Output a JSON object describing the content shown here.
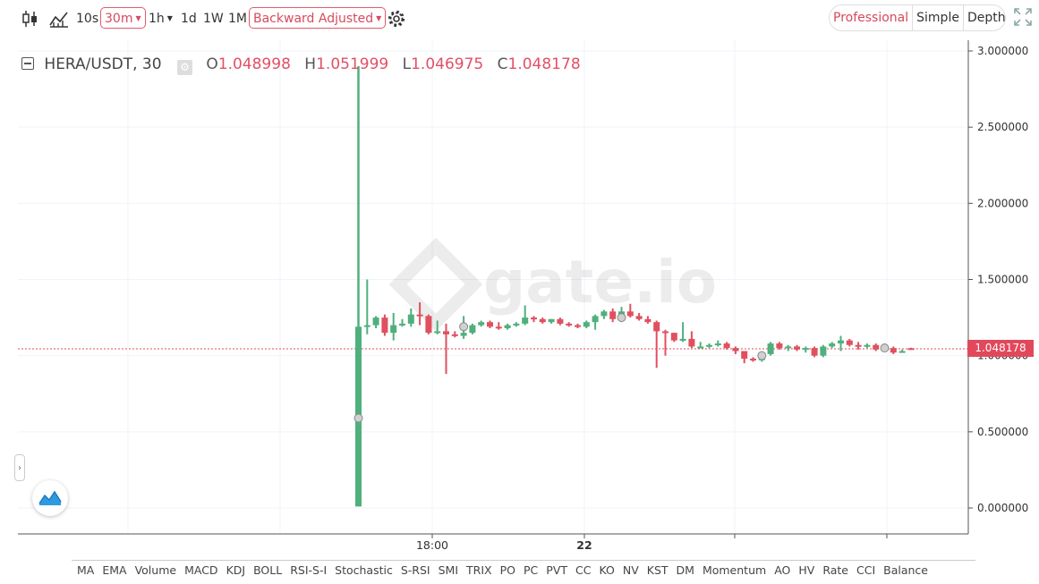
{
  "toolbar": {
    "intervals": [
      "10s",
      "30m",
      "1h",
      "1d",
      "1W",
      "1M"
    ],
    "active_interval": "30m",
    "adjust_label": "Backward Adjusted",
    "views": [
      "Professional",
      "Simple",
      "Depth"
    ],
    "active_view": "Professional"
  },
  "legend": {
    "symbol": "HERA/USDT, 30",
    "o_label": "O",
    "o_value": "1.048998",
    "h_label": "H",
    "h_value": "1.051999",
    "l_label": "L",
    "l_value": "1.046975",
    "c_label": "C",
    "c_value": "1.048178"
  },
  "watermark": "gate.io",
  "last_price_label": "1.048178",
  "side_handle": "›",
  "indicators": [
    "MA",
    "EMA",
    "Volume",
    "MACD",
    "KDJ",
    "BOLL",
    "RSI-S-I",
    "Stochastic",
    "S-RSI",
    "SMI",
    "TRIX",
    "PO",
    "PC",
    "PVT",
    "CC",
    "KO",
    "NV",
    "KST",
    "DM",
    "Momentum",
    "AO",
    "HV",
    "Rate",
    "CCI",
    "Balance"
  ],
  "colors": {
    "up": "#4fb07d",
    "down": "#e0505f",
    "accent": "#d64a5c",
    "grid": "#f0f3fa"
  },
  "icons": [
    "candlestick-icon",
    "indicator-chart-icon",
    "settings-gear-icon",
    "fullscreen-icon",
    "tradingview-logo-icon"
  ],
  "chart_data": {
    "type": "candlestick",
    "title": "HERA/USDT, 30",
    "ylim": [
      0.0,
      3.0
    ],
    "y_ticks": [
      "0.000000",
      "0.500000",
      "1.000000",
      "1.500000",
      "2.000000",
      "2.500000",
      "3.000000"
    ],
    "x_ticks": [
      "18:00",
      "22"
    ],
    "last_price": 1.048178,
    "candles": [
      {
        "o": 0.01,
        "h": 2.9,
        "l": 0.01,
        "c": 1.19
      },
      {
        "o": 1.19,
        "h": 1.5,
        "l": 1.14,
        "c": 1.2
      },
      {
        "o": 1.2,
        "h": 1.26,
        "l": 1.18,
        "c": 1.25
      },
      {
        "o": 1.25,
        "h": 1.27,
        "l": 1.13,
        "c": 1.15
      },
      {
        "o": 1.15,
        "h": 1.28,
        "l": 1.1,
        "c": 1.2
      },
      {
        "o": 1.2,
        "h": 1.24,
        "l": 1.19,
        "c": 1.21
      },
      {
        "o": 1.21,
        "h": 1.31,
        "l": 1.19,
        "c": 1.27
      },
      {
        "o": 1.27,
        "h": 1.35,
        "l": 1.2,
        "c": 1.26
      },
      {
        "o": 1.26,
        "h": 1.27,
        "l": 1.14,
        "c": 1.15
      },
      {
        "o": 1.15,
        "h": 1.23,
        "l": 1.14,
        "c": 1.16
      },
      {
        "o": 1.16,
        "h": 1.21,
        "l": 0.88,
        "c": 1.14
      },
      {
        "o": 1.14,
        "h": 1.16,
        "l": 1.12,
        "c": 1.13
      },
      {
        "o": 1.13,
        "h": 1.26,
        "l": 1.11,
        "c": 1.15
      },
      {
        "o": 1.15,
        "h": 1.21,
        "l": 1.14,
        "c": 1.2
      },
      {
        "o": 1.2,
        "h": 1.23,
        "l": 1.19,
        "c": 1.22
      },
      {
        "o": 1.22,
        "h": 1.23,
        "l": 1.18,
        "c": 1.19
      },
      {
        "o": 1.19,
        "h": 1.22,
        "l": 1.17,
        "c": 1.18
      },
      {
        "o": 1.18,
        "h": 1.21,
        "l": 1.17,
        "c": 1.2
      },
      {
        "o": 1.2,
        "h": 1.22,
        "l": 1.19,
        "c": 1.21
      },
      {
        "o": 1.21,
        "h": 1.33,
        "l": 1.2,
        "c": 1.25
      },
      {
        "o": 1.25,
        "h": 1.26,
        "l": 1.22,
        "c": 1.24
      },
      {
        "o": 1.24,
        "h": 1.25,
        "l": 1.21,
        "c": 1.22
      },
      {
        "o": 1.22,
        "h": 1.24,
        "l": 1.21,
        "c": 1.24
      },
      {
        "o": 1.24,
        "h": 1.25,
        "l": 1.2,
        "c": 1.21
      },
      {
        "o": 1.21,
        "h": 1.22,
        "l": 1.19,
        "c": 1.2
      },
      {
        "o": 1.2,
        "h": 1.21,
        "l": 1.18,
        "c": 1.19
      },
      {
        "o": 1.19,
        "h": 1.23,
        "l": 1.18,
        "c": 1.22
      },
      {
        "o": 1.22,
        "h": 1.27,
        "l": 1.17,
        "c": 1.26
      },
      {
        "o": 1.26,
        "h": 1.3,
        "l": 1.24,
        "c": 1.29
      },
      {
        "o": 1.29,
        "h": 1.31,
        "l": 1.22,
        "c": 1.24
      },
      {
        "o": 1.24,
        "h": 1.32,
        "l": 1.22,
        "c": 1.29
      },
      {
        "o": 1.29,
        "h": 1.34,
        "l": 1.25,
        "c": 1.26
      },
      {
        "o": 1.26,
        "h": 1.28,
        "l": 1.23,
        "c": 1.24
      },
      {
        "o": 1.24,
        "h": 1.26,
        "l": 1.21,
        "c": 1.22
      },
      {
        "o": 1.22,
        "h": 1.23,
        "l": 0.92,
        "c": 1.16
      },
      {
        "o": 1.16,
        "h": 1.17,
        "l": 1.0,
        "c": 1.15
      },
      {
        "o": 1.15,
        "h": 1.15,
        "l": 1.09,
        "c": 1.1
      },
      {
        "o": 1.1,
        "h": 1.22,
        "l": 1.09,
        "c": 1.11
      },
      {
        "o": 1.11,
        "h": 1.16,
        "l": 1.05,
        "c": 1.06
      },
      {
        "o": 1.06,
        "h": 1.09,
        "l": 1.05,
        "c": 1.06
      },
      {
        "o": 1.06,
        "h": 1.08,
        "l": 1.05,
        "c": 1.07
      },
      {
        "o": 1.07,
        "h": 1.1,
        "l": 1.06,
        "c": 1.08
      },
      {
        "o": 1.08,
        "h": 1.09,
        "l": 1.04,
        "c": 1.05
      },
      {
        "o": 1.05,
        "h": 1.06,
        "l": 1.01,
        "c": 1.03
      },
      {
        "o": 1.03,
        "h": 1.03,
        "l": 0.95,
        "c": 0.98
      },
      {
        "o": 0.98,
        "h": 0.99,
        "l": 0.96,
        "c": 0.97
      },
      {
        "o": 0.97,
        "h": 1.02,
        "l": 0.96,
        "c": 1.01
      },
      {
        "o": 1.01,
        "h": 1.09,
        "l": 1.0,
        "c": 1.08
      },
      {
        "o": 1.08,
        "h": 1.09,
        "l": 1.04,
        "c": 1.05
      },
      {
        "o": 1.05,
        "h": 1.07,
        "l": 1.03,
        "c": 1.06
      },
      {
        "o": 1.06,
        "h": 1.07,
        "l": 1.03,
        "c": 1.04
      },
      {
        "o": 1.04,
        "h": 1.06,
        "l": 1.02,
        "c": 1.05
      },
      {
        "o": 1.05,
        "h": 1.06,
        "l": 0.99,
        "c": 1.0
      },
      {
        "o": 1.0,
        "h": 1.07,
        "l": 0.99,
        "c": 1.06
      },
      {
        "o": 1.06,
        "h": 1.09,
        "l": 1.05,
        "c": 1.08
      },
      {
        "o": 1.08,
        "h": 1.13,
        "l": 1.03,
        "c": 1.1
      },
      {
        "o": 1.1,
        "h": 1.11,
        "l": 1.06,
        "c": 1.07
      },
      {
        "o": 1.07,
        "h": 1.09,
        "l": 1.04,
        "c": 1.06
      },
      {
        "o": 1.06,
        "h": 1.08,
        "l": 1.05,
        "c": 1.07
      },
      {
        "o": 1.07,
        "h": 1.08,
        "l": 1.03,
        "c": 1.04
      },
      {
        "o": 1.04,
        "h": 1.08,
        "l": 1.03,
        "c": 1.05
      },
      {
        "o": 1.05,
        "h": 1.06,
        "l": 1.01,
        "c": 1.02
      },
      {
        "o": 1.02,
        "h": 1.04,
        "l": 1.02,
        "c": 1.03
      },
      {
        "o": 1.049,
        "h": 1.052,
        "l": 1.047,
        "c": 1.048
      }
    ],
    "markers": [
      {
        "bar": 0,
        "price": 0.59
      },
      {
        "bar": 12,
        "price": 1.19
      },
      {
        "bar": 30,
        "price": 1.25
      },
      {
        "bar": 46,
        "price": 1.0
      },
      {
        "bar": 60,
        "price": 1.05
      }
    ]
  }
}
